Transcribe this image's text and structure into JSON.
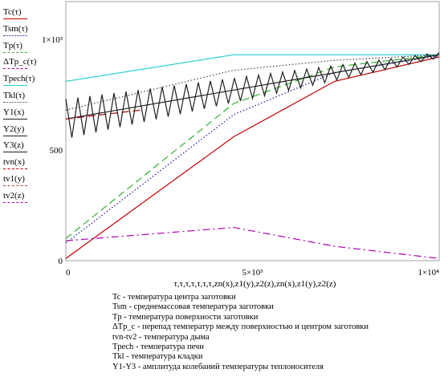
{
  "chart_data": {
    "type": "line",
    "xlim": [
      0,
      10000
    ],
    "ylim": [
      0,
      1170
    ],
    "x_ticks": [
      {
        "value": 0,
        "label": "0"
      },
      {
        "value": 5000,
        "label": "5×10³"
      },
      {
        "value": 10000,
        "label": "1×10⁴"
      }
    ],
    "y_ticks": [
      {
        "value": 0,
        "label": "0"
      },
      {
        "value": 500,
        "label": "500"
      },
      {
        "value": 1000,
        "label": "1×10³"
      }
    ],
    "xlabel": "τ,τ,τ,τ,τ,τ,τ,zn(x),z1(y),z2(z),zn(x),z1(y),z2(z)",
    "grid": false,
    "legend_position": "left",
    "series": [
      {
        "name": "Tc(τ)",
        "color": "#c00000",
        "dash": "solid",
        "x": [
          0,
          4500,
          7200,
          10000
        ],
        "y": [
          10,
          560,
          810,
          920
        ]
      },
      {
        "name": "Tsm(τ)",
        "color": "#1a1aa0",
        "dash": "dot",
        "x": [
          0,
          4500,
          7200,
          10000
        ],
        "y": [
          80,
          660,
          850,
          925
        ]
      },
      {
        "name": "Tp(τ)",
        "color": "#30b030",
        "dash": "dash",
        "x": [
          0,
          4500,
          7200,
          10000
        ],
        "y": [
          100,
          710,
          875,
          930
        ]
      },
      {
        "name": "ΔTp_c(τ)",
        "color": "#b000b0",
        "dash": "dashdot",
        "x": [
          0,
          4500,
          7200,
          10000
        ],
        "y": [
          90,
          150,
          65,
          10
        ]
      },
      {
        "name": "Tpech(τ)",
        "color": "#30d0d0",
        "dash": "solid",
        "x": [
          0,
          4500,
          7200,
          10000
        ],
        "y": [
          810,
          930,
          930,
          930
        ]
      },
      {
        "name": "Tkl(τ)",
        "color": "#404040",
        "dash": "dot",
        "x": [
          0,
          4500,
          7200,
          10000
        ],
        "y": [
          680,
          860,
          905,
          930
        ]
      },
      {
        "name": "Y1(x)",
        "color": "#202020",
        "dash": "solid",
        "x": [
          0,
          10000
        ],
        "y": [
          640,
          930
        ]
      },
      {
        "name": "Y2(y)",
        "color": "#202020",
        "dash": "solid",
        "x": [],
        "y": []
      },
      {
        "name": "Y3(z)",
        "color": "#202020",
        "dash": "solid",
        "x": [],
        "y": []
      },
      {
        "name": "tvn(x)",
        "color": "#c00000",
        "dash": "dash",
        "x": [
          0,
          2000
        ],
        "y": [
          640,
          680
        ]
      },
      {
        "name": "tv1(y)",
        "color": "#c04040",
        "dash": "dash",
        "x": [],
        "y": []
      },
      {
        "name": "tv2(z)",
        "color": "#b000b0",
        "dash": "dashdot",
        "x": [],
        "y": []
      }
    ],
    "oscillation": {
      "series": "Y1(x)",
      "x_start": 0,
      "x_end": 10000,
      "cycles": 31,
      "amp_start": 90,
      "amp_end": 12,
      "center_start": 640,
      "center_end": 928
    }
  },
  "notes": [
    "Tc - температура центра заготовки",
    "Tsm - среднемассовая температура заготовки",
    "Tp - температура поверхности заготовки",
    " ΔTp_c - перепад температур между поверхностью и центром заготовки",
    "tvn-tv2 - температура дыма",
    "Tpech - температура печи",
    "Tkl - температура кладки",
    "Y1-Y3 - амплитуда колебаний температуры теплоносителя"
  ]
}
